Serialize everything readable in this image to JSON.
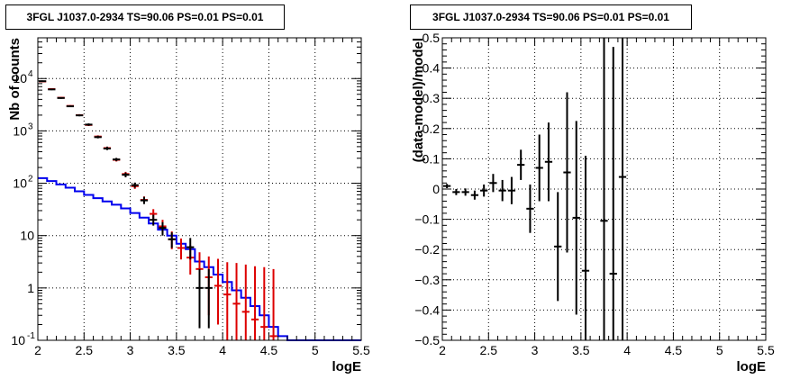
{
  "chart_data": [
    {
      "type": "line",
      "title": "3FGL J1037.0-2934 TS=90.06 PS=0.01 PS=0.01",
      "xlabel": "logE",
      "ylabel": "Nb of counts",
      "xlim": [
        2,
        5.5
      ],
      "ylim": [
        0.1,
        60000
      ],
      "yscale": "log",
      "grid": true,
      "x_ticks": [
        "2",
        "2.5",
        "3",
        "3.5",
        "4",
        "4.5",
        "5",
        "5.5"
      ],
      "y_ticks": [
        {
          "value": 0.1,
          "base": "10",
          "exp": "-1"
        },
        {
          "value": 1,
          "base": "1",
          "exp": ""
        },
        {
          "value": 10,
          "base": "10",
          "exp": ""
        },
        {
          "value": 100,
          "base": "10",
          "exp": "2"
        },
        {
          "value": 1000,
          "base": "10",
          "exp": "3"
        },
        {
          "value": 10000,
          "base": "10",
          "exp": "4"
        }
      ],
      "bin_edges": [
        2,
        2.1,
        2.2,
        2.3,
        2.4,
        2.5,
        2.6,
        2.7,
        2.8,
        2.9,
        3,
        3.1,
        3.2,
        3.3,
        3.4,
        3.5,
        3.6,
        3.7,
        3.8,
        3.9,
        4,
        4.1,
        4.2,
        4.3,
        4.4,
        4.5,
        4.6,
        4.7,
        4.8,
        4.9,
        5,
        5.1,
        5.2,
        5.3,
        5.4,
        5.5
      ],
      "series": [
        {
          "role": "model_blue",
          "color": "#0000ee",
          "values": [
            125,
            110,
            95,
            82,
            70,
            60,
            52,
            45,
            39,
            33,
            27,
            22,
            17,
            13,
            10,
            7,
            5.5,
            3.2,
            2.5,
            1.8,
            1.3,
            0.9,
            0.65,
            0.45,
            0.3,
            0.18,
            0.12,
            0.1,
            0.1,
            0.1,
            0.1,
            0.1,
            0.1,
            0.1,
            0.1
          ]
        },
        {
          "role": "model_red",
          "color": "#dd0000",
          "x": [
            2.05,
            2.15,
            2.25,
            2.35,
            2.45,
            2.55,
            2.65,
            2.75,
            2.85,
            2.95,
            3.05,
            3.15,
            3.25,
            3.35,
            3.45,
            3.55,
            3.65,
            3.75,
            3.85,
            3.95,
            4.05,
            4.15,
            4.25,
            4.35,
            4.45,
            4.55
          ],
          "y": [
            8800,
            6300,
            4300,
            3000,
            2000,
            1300,
            780,
            470,
            280,
            150,
            88,
            48,
            26,
            15,
            8.5,
            5.8,
            3.8,
            2.3,
            1.6,
            1.1,
            0.75,
            0.5,
            0.35,
            0.25,
            0.18,
            0.12
          ],
          "err_hi": [
            9100,
            6500,
            4450,
            3100,
            2080,
            1360,
            820,
            500,
            300,
            165,
            98,
            56,
            32,
            20,
            12,
            8.8,
            6.5,
            4.8,
            4.0,
            3.6,
            3.1,
            3.0,
            2.8,
            2.6,
            2.5,
            2.3
          ],
          "err_lo": [
            8500,
            6100,
            4150,
            2900,
            1920,
            1240,
            740,
            440,
            260,
            135,
            78,
            42,
            21,
            11,
            5.5,
            3.5,
            1.8,
            0.7,
            0.3,
            0.2,
            0.1,
            0.1,
            0.1,
            0.1,
            0.1,
            0.1
          ]
        },
        {
          "role": "data_black",
          "color": "#000000",
          "x": [
            2.05,
            2.15,
            2.25,
            2.35,
            2.45,
            2.55,
            2.65,
            2.75,
            2.85,
            2.95,
            3.05,
            3.15,
            3.25,
            3.35,
            3.45,
            3.65,
            3.75,
            3.85
          ],
          "y": [
            8900,
            6200,
            4250,
            2950,
            1980,
            1320,
            760,
            460,
            285,
            145,
            92,
            47,
            20,
            14,
            8.5,
            6,
            1,
            1
          ],
          "err_hi": [
            9200,
            6400,
            4400,
            3050,
            2060,
            1390,
            810,
            500,
            305,
            160,
            103,
            55,
            25,
            18,
            11.5,
            9,
            2.3,
            2.3
          ],
          "err_lo": [
            8600,
            6000,
            4100,
            2850,
            1900,
            1250,
            720,
            430,
            265,
            130,
            82,
            40,
            15.5,
            10,
            5.8,
            3.5,
            0.17,
            0.17
          ]
        }
      ]
    },
    {
      "type": "scatter",
      "title": "3FGL J1037.0-2934 TS=90.06 PS=0.01 PS=0.01",
      "xlabel": "logE",
      "ylabel": "(data-model)/model",
      "xlim": [
        2,
        5.5
      ],
      "ylim": [
        -0.5,
        0.5
      ],
      "grid": true,
      "x_ticks": [
        "2",
        "2.5",
        "3",
        "3.5",
        "4",
        "4.5",
        "5",
        "5.5"
      ],
      "y_ticks": [
        "−0.5",
        "−0.4",
        "−0.3",
        "−0.2",
        "−0.1",
        "0",
        "0.1",
        "0.2",
        "0.3",
        "0.4",
        "0.5"
      ],
      "y_tick_values": [
        -0.5,
        -0.4,
        -0.3,
        -0.2,
        -0.1,
        0,
        0.1,
        0.2,
        0.3,
        0.4,
        0.5
      ],
      "points": {
        "x": [
          2.05,
          2.15,
          2.25,
          2.35,
          2.45,
          2.55,
          2.65,
          2.75,
          2.85,
          2.95,
          3.05,
          3.15,
          3.25,
          3.35,
          3.45,
          3.55,
          3.75,
          3.85,
          3.95
        ],
        "y": [
          0.01,
          -0.01,
          -0.01,
          -0.02,
          -0.005,
          0.02,
          -0.005,
          -0.005,
          0.08,
          -0.065,
          0.07,
          0.09,
          -0.19,
          0.055,
          -0.095,
          -0.27,
          -0.105,
          -0.28,
          0.04
        ],
        "err": [
          0.007,
          0.01,
          0.012,
          0.015,
          0.02,
          0.03,
          0.035,
          0.045,
          0.05,
          0.08,
          0.11,
          0.13,
          0.18,
          0.265,
          0.32,
          0.38,
          0.7,
          0.75,
          0.9
        ]
      }
    }
  ]
}
